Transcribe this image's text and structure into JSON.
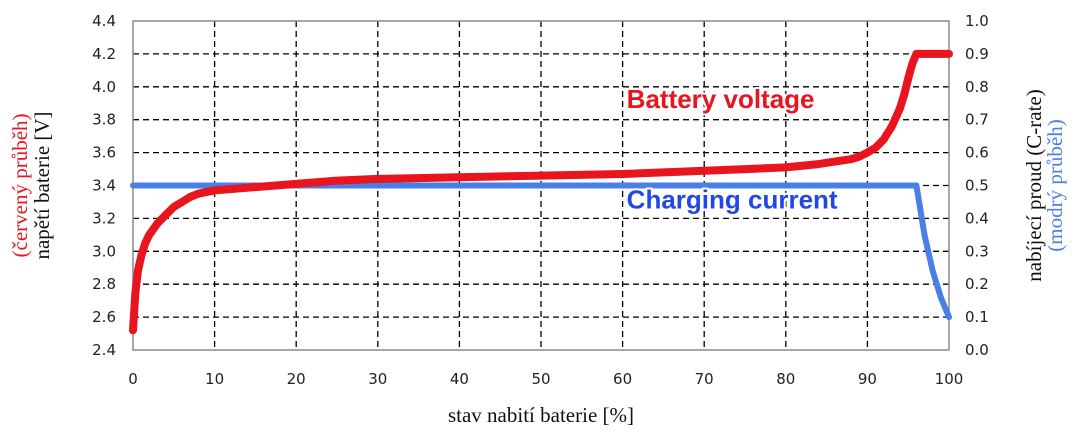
{
  "chart_data": {
    "type": "line",
    "x": [
      0,
      0.3,
      0.6,
      1,
      1.5,
      2,
      3,
      4,
      5,
      6,
      7,
      8,
      9,
      10,
      15,
      20,
      25,
      30,
      40,
      50,
      60,
      70,
      75,
      80,
      84,
      86,
      88,
      89,
      90,
      91,
      92,
      93,
      94,
      94.5,
      95,
      95.5,
      96,
      97,
      98,
      99,
      100
    ],
    "series": [
      {
        "name": "Battery voltage",
        "axis": "left",
        "color": "#e8141e",
        "values": [
          2.52,
          2.75,
          2.88,
          2.97,
          3.05,
          3.1,
          3.17,
          3.22,
          3.27,
          3.3,
          3.33,
          3.35,
          3.36,
          3.37,
          3.39,
          3.41,
          3.43,
          3.44,
          3.45,
          3.46,
          3.47,
          3.49,
          3.5,
          3.51,
          3.53,
          3.545,
          3.56,
          3.575,
          3.6,
          3.63,
          3.68,
          3.76,
          3.87,
          3.95,
          4.05,
          4.14,
          4.2,
          4.2,
          4.2,
          4.2,
          4.2
        ]
      },
      {
        "name": "Charging current",
        "axis": "right",
        "color": "#4a7fe6",
        "x": [
          0,
          96,
          97,
          98,
          99,
          100
        ],
        "values": [
          0.5,
          0.5,
          0.35,
          0.24,
          0.16,
          0.1
        ]
      }
    ],
    "xlabel": "stav nabití baterie [%]",
    "ylabel_left": {
      "line1": "(červený průběh)",
      "line2": "napětí baterie [V]"
    },
    "ylabel_right": {
      "line1": "nabíjecí proud (C-rate)",
      "line2": "(modrý průběh)"
    },
    "xlim": [
      0,
      100
    ],
    "ylim_left": [
      2.4,
      4.4
    ],
    "ylim_right": [
      0.0,
      1.0
    ],
    "x_ticks": [
      "0",
      "10",
      "20",
      "30",
      "40",
      "50",
      "60",
      "70",
      "80",
      "90",
      "100"
    ],
    "y_left_ticks": [
      "2.4",
      "2.6",
      "2.8",
      "3.0",
      "3.2",
      "3.4",
      "3.6",
      "3.8",
      "4.0",
      "4.2",
      "4.4"
    ],
    "y_right_ticks": [
      "0.0",
      "0.1",
      "0.2",
      "0.3",
      "0.4",
      "0.5",
      "0.6",
      "0.7",
      "0.8",
      "0.9",
      "1.0"
    ],
    "annotations": [
      {
        "text": "Battery voltage",
        "color": "#e8141e",
        "x": 60.5,
        "y_left": 3.87
      },
      {
        "text": "Charging current",
        "color": "#2147e8",
        "x": 60.5,
        "y_left": 3.26
      }
    ],
    "grid": true,
    "grid_style": "dashed",
    "legend": "none",
    "colors": {
      "red_label": "#e8141e",
      "blue_label": "#4a7fe6",
      "grid": "#000000"
    }
  }
}
